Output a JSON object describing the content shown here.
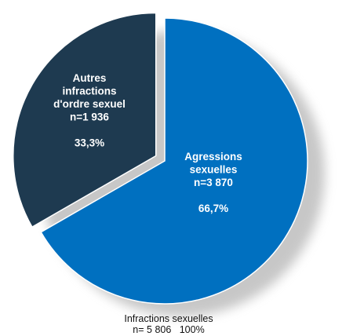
{
  "chart_data": {
    "type": "pie",
    "title": "",
    "slices": [
      {
        "label_lines": [
          "Agressions",
          "sexuelles",
          "n=3 870",
          "",
          "66,7%"
        ],
        "name": "Agressions sexuelles",
        "count": 3870,
        "percent": 66.7,
        "percent_label": "66,7%",
        "color": "#0070c0"
      },
      {
        "label_lines": [
          "Autres",
          "infractions",
          "d'ordre sexuel",
          "n=1 936",
          "",
          "33,3%"
        ],
        "name": "Autres infractions d'ordre sexuel",
        "count": 1936,
        "percent": 33.3,
        "percent_label": "33,3%",
        "color": "#1e3a50"
      }
    ],
    "total": {
      "line1": "Infractions sexuelles",
      "line2": "n= 5 806   100%",
      "count": 5806,
      "percent": 100
    },
    "exploded_slice": "Autres infractions d'ordre sexuel",
    "shadow": true
  }
}
